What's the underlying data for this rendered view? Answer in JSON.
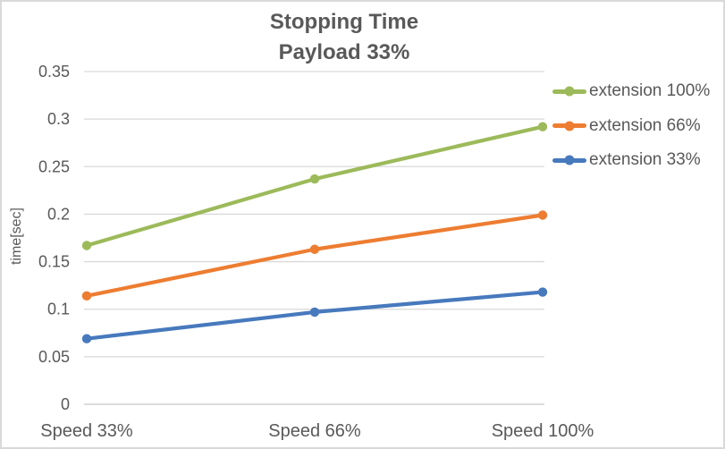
{
  "chart_data": {
    "type": "line",
    "title": "Stopping Time",
    "subtitle": "Payload 33%",
    "ylabel": "time[sec]",
    "xlabel": "",
    "categories": [
      "Speed 33%",
      "Speed 66%",
      "Speed 100%"
    ],
    "series": [
      {
        "name": "extension 100%",
        "color": "#9cba5a",
        "values": [
          0.167,
          0.237,
          0.292
        ]
      },
      {
        "name": "extension 66%",
        "color": "#ed7d31",
        "values": [
          0.114,
          0.163,
          0.199
        ]
      },
      {
        "name": "extension 33%",
        "color": "#4779bd",
        "values": [
          0.069,
          0.097,
          0.118
        ]
      }
    ],
    "ylim": [
      0,
      0.35
    ],
    "yticks": [
      0,
      0.05,
      0.1,
      0.15,
      0.2,
      0.25,
      0.3,
      0.35
    ],
    "ytick_labels": [
      "0",
      "0.05",
      "0.1",
      "0.15",
      "0.2",
      "0.25",
      "0.3",
      "0.35"
    ],
    "grid": true,
    "marker": "circle",
    "legend_position": "right",
    "style": {
      "text_color": "#595959",
      "grid_color": "#d9d9d9",
      "axis_color": "#c6c6c6",
      "border_color": "#d9d9d9",
      "background": "#ffffff"
    }
  }
}
